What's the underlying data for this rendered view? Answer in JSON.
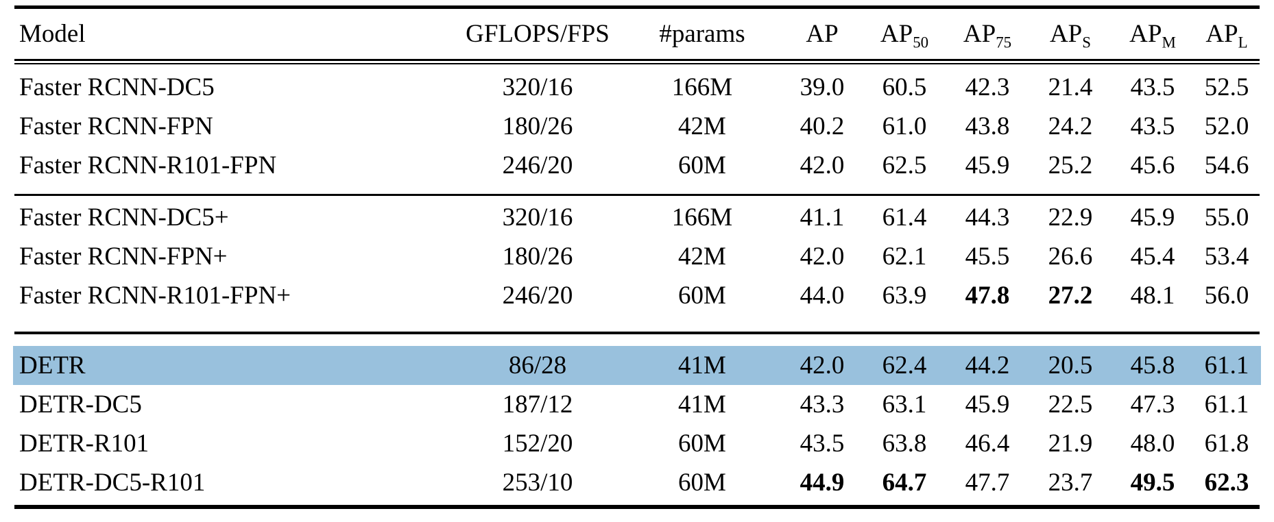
{
  "colors": {
    "highlight_row": "#99c1dd",
    "rule": "#000000",
    "text": "#000000",
    "background": "#ffffff"
  },
  "table": {
    "columns": [
      {
        "label": "Model",
        "sub": ""
      },
      {
        "label": "GFLOPS/FPS",
        "sub": ""
      },
      {
        "label": "#params",
        "sub": ""
      },
      {
        "label": "AP",
        "sub": ""
      },
      {
        "label": "AP",
        "sub": "50"
      },
      {
        "label": "AP",
        "sub": "75"
      },
      {
        "label": "AP",
        "sub": "S"
      },
      {
        "label": "AP",
        "sub": "M"
      },
      {
        "label": "AP",
        "sub": "L"
      }
    ],
    "groups": [
      {
        "name": "faster-rcnn",
        "rows": [
          {
            "model": "Faster RCNN-DC5",
            "gflops_fps": "320/16",
            "params": "166M",
            "metrics": [
              "39.0",
              "60.5",
              "42.3",
              "21.4",
              "43.5",
              "52.5"
            ],
            "bold": [],
            "highlight": false
          },
          {
            "model": "Faster RCNN-FPN",
            "gflops_fps": "180/26",
            "params": "42M",
            "metrics": [
              "40.2",
              "61.0",
              "43.8",
              "24.2",
              "43.5",
              "52.0"
            ],
            "bold": [],
            "highlight": false
          },
          {
            "model": "Faster RCNN-R101-FPN",
            "gflops_fps": "246/20",
            "params": "60M",
            "metrics": [
              "42.0",
              "62.5",
              "45.9",
              "25.2",
              "45.6",
              "54.6"
            ],
            "bold": [],
            "highlight": false
          }
        ]
      },
      {
        "name": "faster-rcnn-plus",
        "rows": [
          {
            "model": "Faster RCNN-DC5+",
            "gflops_fps": "320/16",
            "params": "166M",
            "metrics": [
              "41.1",
              "61.4",
              "44.3",
              "22.9",
              "45.9",
              "55.0"
            ],
            "bold": [],
            "highlight": false
          },
          {
            "model": "Faster RCNN-FPN+",
            "gflops_fps": "180/26",
            "params": "42M",
            "metrics": [
              "42.0",
              "62.1",
              "45.5",
              "26.6",
              "45.4",
              "53.4"
            ],
            "bold": [],
            "highlight": false
          },
          {
            "model": "Faster RCNN-R101-FPN+",
            "gflops_fps": "246/20",
            "params": "60M",
            "metrics": [
              "44.0",
              "63.9",
              "47.8",
              "27.2",
              "48.1",
              "56.0"
            ],
            "bold": [
              2,
              3
            ],
            "highlight": false
          }
        ]
      },
      {
        "name": "detr",
        "rows": [
          {
            "model": "DETR",
            "gflops_fps": "86/28",
            "params": "41M",
            "metrics": [
              "42.0",
              "62.4",
              "44.2",
              "20.5",
              "45.8",
              "61.1"
            ],
            "bold": [],
            "highlight": true
          },
          {
            "model": "DETR-DC5",
            "gflops_fps": "187/12",
            "params": "41M",
            "metrics": [
              "43.3",
              "63.1",
              "45.9",
              "22.5",
              "47.3",
              "61.1"
            ],
            "bold": [],
            "highlight": false
          },
          {
            "model": "DETR-R101",
            "gflops_fps": "152/20",
            "params": "60M",
            "metrics": [
              "43.5",
              "63.8",
              "46.4",
              "21.9",
              "48.0",
              "61.8"
            ],
            "bold": [],
            "highlight": false
          },
          {
            "model": "DETR-DC5-R101",
            "gflops_fps": "253/10",
            "params": "60M",
            "metrics": [
              "44.9",
              "64.7",
              "47.7",
              "23.7",
              "49.5",
              "62.3"
            ],
            "bold": [
              0,
              1,
              4,
              5
            ],
            "highlight": false
          }
        ]
      }
    ]
  }
}
